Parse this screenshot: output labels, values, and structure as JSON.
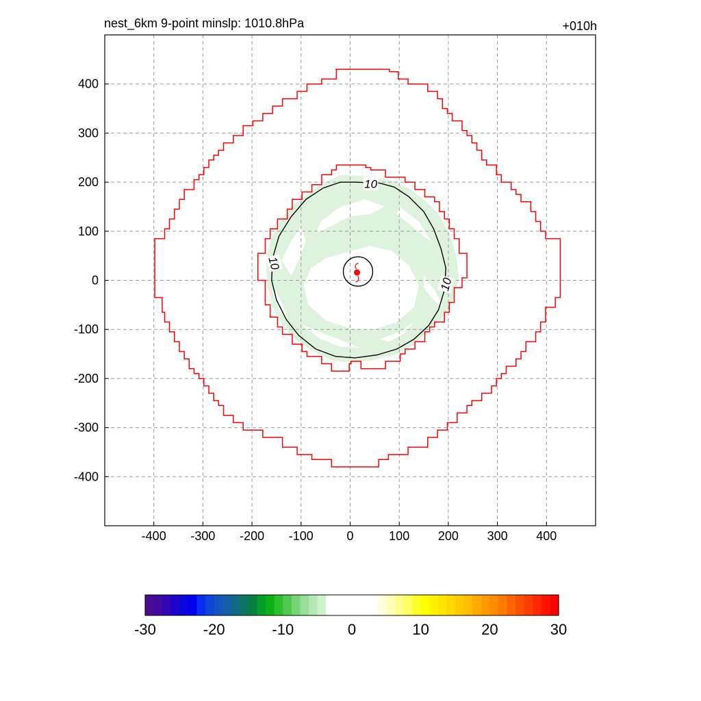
{
  "header": {
    "title": "nest_6km  9-point minslp: 1010.8hPa",
    "forecast_hour": "+010h"
  },
  "chart_data": {
    "type": "contour",
    "x": {
      "ticks": [
        -400,
        -300,
        -200,
        -100,
        0,
        100,
        200,
        300,
        400
      ],
      "range": [
        -500,
        500
      ]
    },
    "y": {
      "ticks": [
        -400,
        -300,
        -200,
        -100,
        0,
        100,
        200,
        300,
        400
      ],
      "range": [
        -500,
        500
      ]
    },
    "grid": true,
    "grid_style": "dashed",
    "contour_label": "10",
    "contour_labels": [
      {
        "text": "10",
        "x": 42,
        "y": 197,
        "rot": 0
      },
      {
        "text": "10",
        "x": -155,
        "y": 35,
        "rot": 75
      },
      {
        "text": "10",
        "x": 195,
        "y": -8,
        "rot": -75
      }
    ],
    "storm_center": {
      "x": 14,
      "y": 16
    },
    "inner_circle": {
      "cx": 16,
      "cy": 18,
      "r": 30
    },
    "outer_domain_boundary": [
      [
        -30,
        430
      ],
      [
        80,
        430
      ],
      [
        80,
        425
      ],
      [
        98,
        425
      ],
      [
        98,
        410
      ],
      [
        118,
        410
      ],
      [
        118,
        400
      ],
      [
        158,
        400
      ],
      [
        158,
        385
      ],
      [
        178,
        385
      ],
      [
        178,
        370
      ],
      [
        188,
        370
      ],
      [
        188,
        350
      ],
      [
        198,
        350
      ],
      [
        198,
        340
      ],
      [
        208,
        340
      ],
      [
        208,
        325
      ],
      [
        228,
        325
      ],
      [
        228,
        305
      ],
      [
        238,
        305
      ],
      [
        238,
        295
      ],
      [
        248,
        295
      ],
      [
        248,
        280
      ],
      [
        258,
        280
      ],
      [
        258,
        265
      ],
      [
        268,
        265
      ],
      [
        268,
        245
      ],
      [
        278,
        245
      ],
      [
        278,
        235
      ],
      [
        298,
        235
      ],
      [
        298,
        215
      ],
      [
        308,
        215
      ],
      [
        308,
        200
      ],
      [
        328,
        200
      ],
      [
        328,
        185
      ],
      [
        338,
        185
      ],
      [
        338,
        175
      ],
      [
        348,
        175
      ],
      [
        348,
        160
      ],
      [
        368,
        160
      ],
      [
        368,
        140
      ],
      [
        378,
        140
      ],
      [
        378,
        120
      ],
      [
        388,
        120
      ],
      [
        388,
        100
      ],
      [
        398,
        100
      ],
      [
        398,
        85
      ],
      [
        428,
        85
      ],
      [
        428,
        -35
      ],
      [
        418,
        -35
      ],
      [
        418,
        -55
      ],
      [
        398,
        -55
      ],
      [
        398,
        -85
      ],
      [
        388,
        -85
      ],
      [
        388,
        -105
      ],
      [
        378,
        -105
      ],
      [
        378,
        -125
      ],
      [
        358,
        -125
      ],
      [
        358,
        -145
      ],
      [
        348,
        -145
      ],
      [
        348,
        -160
      ],
      [
        338,
        -160
      ],
      [
        338,
        -175
      ],
      [
        318,
        -175
      ],
      [
        318,
        -190
      ],
      [
        308,
        -190
      ],
      [
        308,
        -200
      ],
      [
        298,
        -200
      ],
      [
        298,
        -215
      ],
      [
        288,
        -215
      ],
      [
        288,
        -230
      ],
      [
        268,
        -230
      ],
      [
        268,
        -245
      ],
      [
        248,
        -245
      ],
      [
        248,
        -255
      ],
      [
        238,
        -255
      ],
      [
        238,
        -270
      ],
      [
        218,
        -270
      ],
      [
        218,
        -290
      ],
      [
        198,
        -290
      ],
      [
        198,
        -305
      ],
      [
        178,
        -305
      ],
      [
        178,
        -320
      ],
      [
        158,
        -320
      ],
      [
        158,
        -340
      ],
      [
        118,
        -340
      ],
      [
        118,
        -355
      ],
      [
        78,
        -355
      ],
      [
        78,
        -365
      ],
      [
        58,
        -365
      ],
      [
        58,
        -380
      ],
      [
        -38,
        -380
      ],
      [
        -38,
        -365
      ],
      [
        -78,
        -365
      ],
      [
        -78,
        -355
      ],
      [
        -108,
        -355
      ],
      [
        -108,
        -340
      ],
      [
        -138,
        -340
      ],
      [
        -138,
        -320
      ],
      [
        -178,
        -320
      ],
      [
        -178,
        -305
      ],
      [
        -218,
        -305
      ],
      [
        -218,
        -290
      ],
      [
        -238,
        -290
      ],
      [
        -238,
        -275
      ],
      [
        -258,
        -275
      ],
      [
        -258,
        -255
      ],
      [
        -268,
        -255
      ],
      [
        -268,
        -245
      ],
      [
        -278,
        -245
      ],
      [
        -278,
        -230
      ],
      [
        -288,
        -230
      ],
      [
        -288,
        -215
      ],
      [
        -298,
        -215
      ],
      [
        -298,
        -200
      ],
      [
        -308,
        -200
      ],
      [
        -308,
        -190
      ],
      [
        -318,
        -190
      ],
      [
        -318,
        -180
      ],
      [
        -328,
        -180
      ],
      [
        -328,
        -160
      ],
      [
        -338,
        -160
      ],
      [
        -338,
        -145
      ],
      [
        -348,
        -145
      ],
      [
        -348,
        -125
      ],
      [
        -358,
        -125
      ],
      [
        -358,
        -105
      ],
      [
        -368,
        -105
      ],
      [
        -368,
        -85
      ],
      [
        -378,
        -85
      ],
      [
        -378,
        -65
      ],
      [
        -383,
        -65
      ],
      [
        -383,
        -35
      ],
      [
        -398,
        -35
      ],
      [
        -398,
        85
      ],
      [
        -378,
        85
      ],
      [
        -378,
        105
      ],
      [
        -368,
        105
      ],
      [
        -368,
        125
      ],
      [
        -358,
        125
      ],
      [
        -358,
        145
      ],
      [
        -348,
        145
      ],
      [
        -348,
        165
      ],
      [
        -338,
        165
      ],
      [
        -338,
        185
      ],
      [
        -318,
        185
      ],
      [
        -318,
        205
      ],
      [
        -308,
        205
      ],
      [
        -308,
        215
      ],
      [
        -298,
        215
      ],
      [
        -298,
        230
      ],
      [
        -288,
        230
      ],
      [
        -288,
        245
      ],
      [
        -278,
        245
      ],
      [
        -278,
        255
      ],
      [
        -268,
        255
      ],
      [
        -268,
        265
      ],
      [
        -258,
        265
      ],
      [
        -258,
        280
      ],
      [
        -238,
        280
      ],
      [
        -238,
        295
      ],
      [
        -218,
        295
      ],
      [
        -218,
        315
      ],
      [
        -198,
        315
      ],
      [
        -198,
        325
      ],
      [
        -178,
        325
      ],
      [
        -178,
        340
      ],
      [
        -158,
        340
      ],
      [
        -158,
        355
      ],
      [
        -138,
        355
      ],
      [
        -138,
        370
      ],
      [
        -108,
        370
      ],
      [
        -108,
        385
      ],
      [
        -88,
        385
      ],
      [
        -88,
        400
      ],
      [
        -58,
        400
      ],
      [
        -58,
        410
      ],
      [
        -28,
        410
      ],
      [
        -28,
        430
      ]
    ],
    "inner_domain_boundary": [
      [
        -28,
        235
      ],
      [
        32,
        235
      ],
      [
        32,
        230
      ],
      [
        42,
        230
      ],
      [
        42,
        225
      ],
      [
        72,
        225
      ],
      [
        72,
        210
      ],
      [
        112,
        210
      ],
      [
        112,
        200
      ],
      [
        132,
        200
      ],
      [
        132,
        185
      ],
      [
        152,
        185
      ],
      [
        152,
        170
      ],
      [
        172,
        170
      ],
      [
        172,
        160
      ],
      [
        182,
        160
      ],
      [
        182,
        140
      ],
      [
        192,
        140
      ],
      [
        192,
        125
      ],
      [
        202,
        125
      ],
      [
        202,
        105
      ],
      [
        212,
        105
      ],
      [
        212,
        85
      ],
      [
        222,
        85
      ],
      [
        222,
        55
      ],
      [
        238,
        55
      ],
      [
        238,
        5
      ],
      [
        228,
        5
      ],
      [
        228,
        -15
      ],
      [
        212,
        -15
      ],
      [
        212,
        -45
      ],
      [
        202,
        -45
      ],
      [
        202,
        -65
      ],
      [
        192,
        -65
      ],
      [
        192,
        -85
      ],
      [
        172,
        -85
      ],
      [
        172,
        -95
      ],
      [
        162,
        -95
      ],
      [
        162,
        -105
      ],
      [
        152,
        -105
      ],
      [
        152,
        -125
      ],
      [
        132,
        -125
      ],
      [
        132,
        -140
      ],
      [
        112,
        -140
      ],
      [
        112,
        -150
      ],
      [
        102,
        -150
      ],
      [
        102,
        -165
      ],
      [
        72,
        -165
      ],
      [
        72,
        -180
      ],
      [
        22,
        -180
      ],
      [
        22,
        -165
      ],
      [
        2,
        -165
      ],
      [
        2,
        -170
      ],
      [
        -2,
        -170
      ],
      [
        -2,
        -185
      ],
      [
        -38,
        -185
      ],
      [
        -38,
        -170
      ],
      [
        -58,
        -170
      ],
      [
        -58,
        -155
      ],
      [
        -88,
        -155
      ],
      [
        -88,
        -145
      ],
      [
        -98,
        -145
      ],
      [
        -98,
        -130
      ],
      [
        -118,
        -130
      ],
      [
        -118,
        -110
      ],
      [
        -138,
        -110
      ],
      [
        -138,
        -95
      ],
      [
        -148,
        -95
      ],
      [
        -148,
        -75
      ],
      [
        -163,
        -75
      ],
      [
        -163,
        -50
      ],
      [
        -173,
        -50
      ],
      [
        -173,
        0
      ],
      [
        -188,
        0
      ],
      [
        -188,
        55
      ],
      [
        -173,
        55
      ],
      [
        -173,
        85
      ],
      [
        -163,
        85
      ],
      [
        -163,
        105
      ],
      [
        -148,
        105
      ],
      [
        -148,
        125
      ],
      [
        -128,
        125
      ],
      [
        -128,
        145
      ],
      [
        -118,
        145
      ],
      [
        -118,
        165
      ],
      [
        -98,
        165
      ],
      [
        -98,
        180
      ],
      [
        -78,
        180
      ],
      [
        -78,
        195
      ],
      [
        -58,
        195
      ],
      [
        -58,
        215
      ],
      [
        -38,
        215
      ],
      [
        -38,
        225
      ],
      [
        -28,
        225
      ]
    ],
    "colorbar": {
      "ticks": [
        -30,
        -20,
        -10,
        0,
        10,
        20,
        30
      ],
      "range": [
        -30,
        30
      ],
      "colors": [
        "#4a0c8e",
        "#4309a0",
        "#3306b5",
        "#1e05ca",
        "#0a06dc",
        "#0000f0",
        "#0a2cf0",
        "#0c45d8",
        "#1454c0",
        "#145fa5",
        "#0f6a82",
        "#0a7560",
        "#067e3e",
        "#02a02a",
        "#0cb014",
        "#2cbf2c",
        "#50c850",
        "#76d476",
        "#96de96",
        "#b4e8b4",
        "#d0f2d0",
        "#ffffff",
        "#ffffff",
        "#ffffff",
        "#ffffff",
        "#ffffff",
        "#ffffff",
        "#ffffe0",
        "#ffffb8",
        "#ffff90",
        "#ffff60",
        "#ffff28",
        "#ffff00",
        "#fff200",
        "#ffe600",
        "#ffd800",
        "#ffca00",
        "#ffbc00",
        "#ffaa00",
        "#ff9a00",
        "#ff8c00",
        "#ff7a00",
        "#ff6400",
        "#ff5000",
        "#ff3c00",
        "#ff2800",
        "#ff1400",
        "#ff0000"
      ]
    },
    "colors": {
      "boundary": "#ff0000",
      "contour": "#000000",
      "shade": "#def3de",
      "grid": "#999999"
    }
  }
}
